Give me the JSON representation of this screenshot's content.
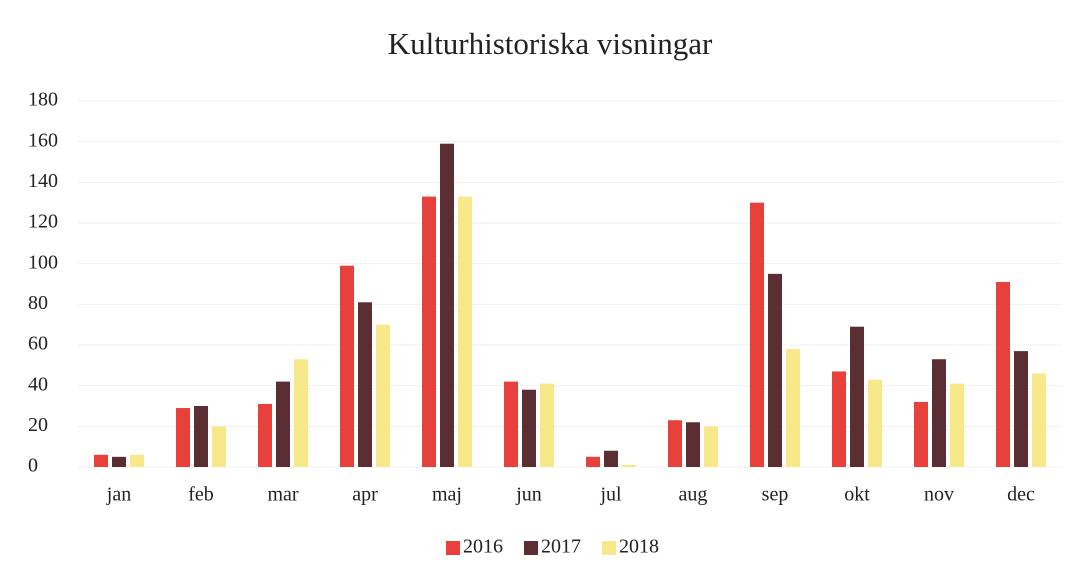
{
  "chart_data": {
    "type": "bar",
    "title": "Kulturhistoriska visningar",
    "categories": [
      "jan",
      "feb",
      "mar",
      "apr",
      "maj",
      "jun",
      "jul",
      "aug",
      "sep",
      "okt",
      "nov",
      "dec"
    ],
    "series": [
      {
        "name": "2016",
        "color": "#e8413c",
        "values": [
          6,
          29,
          31,
          99,
          133,
          42,
          5,
          23,
          130,
          47,
          32,
          91
        ]
      },
      {
        "name": "2017",
        "color": "#5a2e33",
        "values": [
          5,
          30,
          42,
          81,
          159,
          38,
          8,
          22,
          95,
          69,
          53,
          57
        ]
      },
      {
        "name": "2018",
        "color": "#f7e98a",
        "values": [
          6,
          20,
          53,
          70,
          133,
          41,
          1,
          20,
          58,
          43,
          41,
          46
        ]
      }
    ],
    "ylim": [
      0,
      180
    ],
    "yticks": [
      0,
      20,
      40,
      60,
      80,
      100,
      120,
      140,
      160,
      180
    ],
    "grid": true,
    "legend": "bottom"
  }
}
